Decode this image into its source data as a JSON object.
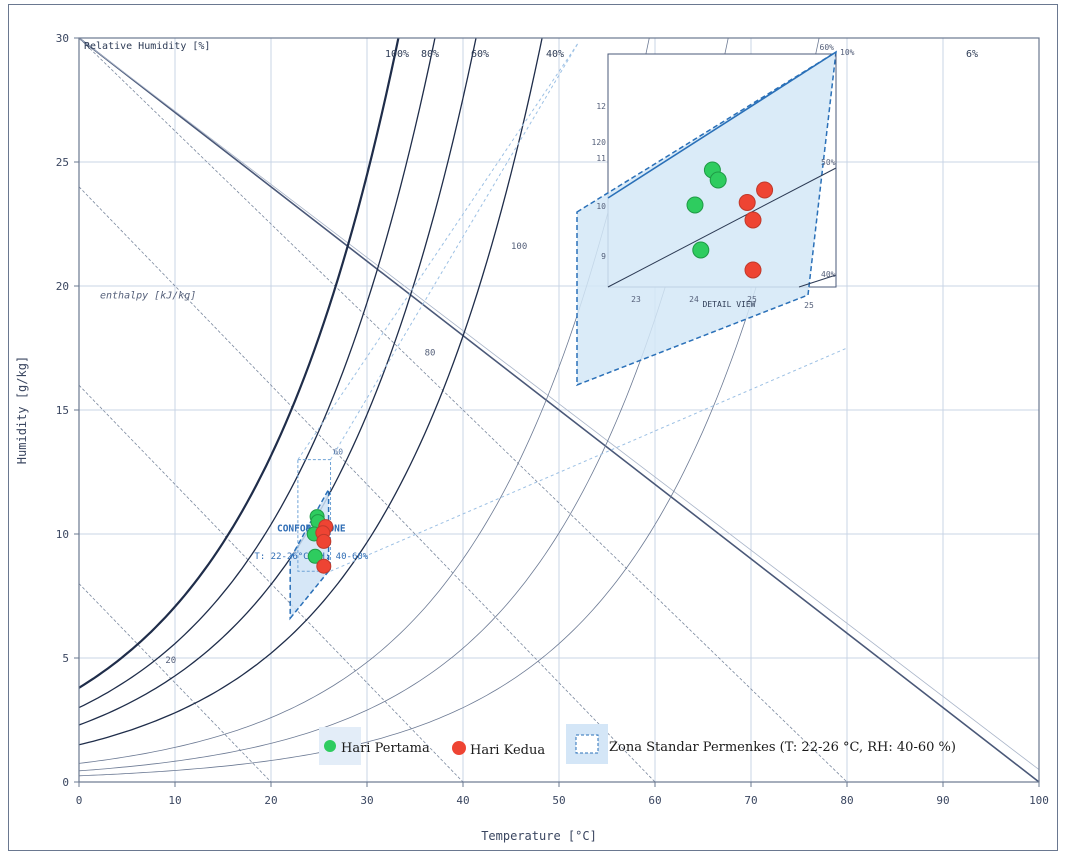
{
  "chart_data": {
    "type": "scatter",
    "subtype": "psychrometric",
    "xlabel": "Temperature  [°C]",
    "ylabel": "Humidity  [g/kg]",
    "xlim": [
      0,
      100
    ],
    "ylim": [
      0,
      30
    ],
    "x_ticks": [
      "0",
      "10",
      "20",
      "30",
      "40",
      "50",
      "60",
      "70",
      "80",
      "90",
      "100"
    ],
    "y_ticks": [
      "0",
      "5",
      "10",
      "15",
      "20",
      "25",
      "30"
    ],
    "grid": true,
    "legend_position": "bottom-center",
    "rh_title": "Relative Humidity [%]",
    "rh_curves": [
      {
        "label": "100%",
        "rh": 100,
        "w0": 3.8
      },
      {
        "label": "80%",
        "rh": 80,
        "w0": 3.0
      },
      {
        "label": "60%",
        "rh": 60,
        "w0": 2.3
      },
      {
        "label": "40%",
        "rh": 40,
        "w0": 1.5
      },
      {
        "label": "",
        "rh": 20,
        "w0": 0.75
      },
      {
        "label": "",
        "rh": 10,
        "w0": 0.45
      },
      {
        "label": "6%",
        "rh": 6,
        "w0": 0.25
      }
    ],
    "enthalpy_title": "enthalpy [kJ/kg]",
    "enthalpy_labels": [
      {
        "label": "20",
        "x": 9,
        "y": 4.8
      },
      {
        "label": "80",
        "x": 36,
        "y": 17.2
      },
      {
        "label": "100",
        "x": 45,
        "y": 21.5
      }
    ],
    "comfort_zone": {
      "label_line1": "CONFORT ZONE",
      "label_line2": "T: 22-26°C  RH: 40-60%",
      "corner_label": "60"
    },
    "series": [
      {
        "name": "Hari Pertama",
        "color": "#2ecc5f",
        "points": [
          [
            24.8,
            10.7
          ],
          [
            24.9,
            10.5
          ],
          [
            24.5,
            10.0
          ],
          [
            24.6,
            9.1
          ]
        ]
      },
      {
        "name": "Hari Kedua",
        "color": "#ee4433",
        "points": [
          [
            25.7,
            10.3
          ],
          [
            25.4,
            10.05
          ],
          [
            25.5,
            9.7
          ],
          [
            25.5,
            8.7
          ]
        ]
      }
    ],
    "legend": {
      "day1": "Hari Pertama",
      "day2": "Hari Kedua",
      "zone": "Zona Standar Permenkes (T: 22-26 °C, RH: 40-60 %)"
    },
    "inset": {
      "title": "DETAIL VIEW",
      "x_ticks": [
        "23",
        "24",
        "25"
      ],
      "y_ticks": [
        "9",
        "10",
        "11",
        "12"
      ],
      "y_extra": "120",
      "rh_labels": [
        "60%",
        "10%",
        "50%",
        "40%"
      ],
      "top_label": "60%",
      "outside_tick": "25"
    }
  }
}
